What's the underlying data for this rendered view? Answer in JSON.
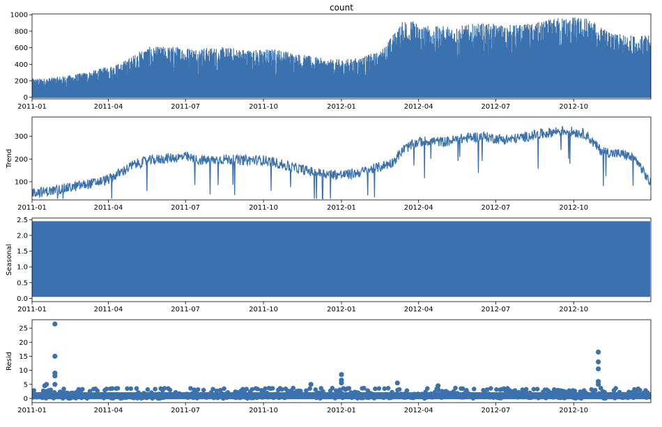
{
  "chart_data": [
    {
      "type": "area",
      "panel": "observed",
      "title": "count",
      "ylabel": "",
      "ylim": [
        -20,
        1010
      ],
      "yticks": [
        0,
        200,
        400,
        600,
        800,
        1000
      ],
      "xlim": [
        "2011-01-01",
        "2012-12-31"
      ],
      "xticks": [
        "2011-01",
        "2011-04",
        "2011-07",
        "2011-10",
        "2012-01",
        "2012-04",
        "2012-07",
        "2012-10"
      ],
      "color": "#3a72b0",
      "series": [
        {
          "values_monthly_peak": [
            {
              "x": "2011-01",
              "y": 230
            },
            {
              "x": "2011-02",
              "y": 270
            },
            {
              "x": "2011-03",
              "y": 330
            },
            {
              "x": "2011-04",
              "y": 420
            },
            {
              "x": "2011-05",
              "y": 610
            },
            {
              "x": "2011-06",
              "y": 620
            },
            {
              "x": "2011-07",
              "y": 600
            },
            {
              "x": "2011-08",
              "y": 610
            },
            {
              "x": "2011-09",
              "y": 580
            },
            {
              "x": "2011-10",
              "y": 590
            },
            {
              "x": "2011-11",
              "y": 520
            },
            {
              "x": "2011-12",
              "y": 460
            },
            {
              "x": "2012-01",
              "y": 470
            },
            {
              "x": "2012-02",
              "y": 560
            },
            {
              "x": "2012-03",
              "y": 960
            },
            {
              "x": "2012-04",
              "y": 860
            },
            {
              "x": "2012-05",
              "y": 870
            },
            {
              "x": "2012-06",
              "y": 900
            },
            {
              "x": "2012-07",
              "y": 880
            },
            {
              "x": "2012-08",
              "y": 900
            },
            {
              "x": "2012-09",
              "y": 980
            },
            {
              "x": "2012-10",
              "y": 970
            },
            {
              "x": "2012-11",
              "y": 770
            },
            {
              "x": "2012-12",
              "y": 750
            }
          ]
        }
      ]
    },
    {
      "type": "line",
      "panel": "trend",
      "title": "",
      "ylabel": "Trend",
      "ylim": [
        20,
        385
      ],
      "yticks": [
        100,
        200,
        300
      ],
      "xlim": [
        "2011-01-01",
        "2012-12-31"
      ],
      "xticks": [
        "2011-01",
        "2011-04",
        "2011-07",
        "2011-10",
        "2012-01",
        "2012-04",
        "2012-07",
        "2012-10"
      ],
      "color": "#3a72b0",
      "series": [
        {
          "values": [
            {
              "x": "2011-01-01",
              "y": 55
            },
            {
              "x": "2011-01-15",
              "y": 55
            },
            {
              "x": "2011-02-01",
              "y": 65
            },
            {
              "x": "2011-02-15",
              "y": 75
            },
            {
              "x": "2011-03-01",
              "y": 85
            },
            {
              "x": "2011-03-15",
              "y": 95
            },
            {
              "x": "2011-04-01",
              "y": 110
            },
            {
              "x": "2011-04-15",
              "y": 140
            },
            {
              "x": "2011-05-01",
              "y": 175
            },
            {
              "x": "2011-05-15",
              "y": 190
            },
            {
              "x": "2011-06-01",
              "y": 200
            },
            {
              "x": "2011-06-15",
              "y": 205
            },
            {
              "x": "2011-07-01",
              "y": 210
            },
            {
              "x": "2011-07-15",
              "y": 195
            },
            {
              "x": "2011-08-01",
              "y": 195
            },
            {
              "x": "2011-08-15",
              "y": 200
            },
            {
              "x": "2011-09-01",
              "y": 195
            },
            {
              "x": "2011-09-15",
              "y": 195
            },
            {
              "x": "2011-10-01",
              "y": 195
            },
            {
              "x": "2011-10-15",
              "y": 185
            },
            {
              "x": "2011-11-01",
              "y": 165
            },
            {
              "x": "2011-11-15",
              "y": 155
            },
            {
              "x": "2011-12-01",
              "y": 140
            },
            {
              "x": "2011-12-15",
              "y": 135
            },
            {
              "x": "2012-01-01",
              "y": 130
            },
            {
              "x": "2012-01-15",
              "y": 135
            },
            {
              "x": "2012-02-01",
              "y": 150
            },
            {
              "x": "2012-02-15",
              "y": 165
            },
            {
              "x": "2012-03-01",
              "y": 185
            },
            {
              "x": "2012-03-15",
              "y": 245
            },
            {
              "x": "2012-04-01",
              "y": 275
            },
            {
              "x": "2012-04-15",
              "y": 280
            },
            {
              "x": "2012-05-01",
              "y": 275
            },
            {
              "x": "2012-05-15",
              "y": 285
            },
            {
              "x": "2012-06-01",
              "y": 295
            },
            {
              "x": "2012-06-15",
              "y": 300
            },
            {
              "x": "2012-07-01",
              "y": 290
            },
            {
              "x": "2012-07-15",
              "y": 285
            },
            {
              "x": "2012-08-01",
              "y": 295
            },
            {
              "x": "2012-08-15",
              "y": 305
            },
            {
              "x": "2012-09-01",
              "y": 315
            },
            {
              "x": "2012-09-15",
              "y": 325
            },
            {
              "x": "2012-10-01",
              "y": 320
            },
            {
              "x": "2012-10-15",
              "y": 310
            },
            {
              "x": "2012-11-01",
              "y": 240
            },
            {
              "x": "2012-11-15",
              "y": 225
            },
            {
              "x": "2012-12-01",
              "y": 220
            },
            {
              "x": "2012-12-15",
              "y": 190
            },
            {
              "x": "2012-12-31",
              "y": 90
            }
          ]
        }
      ]
    },
    {
      "type": "area",
      "panel": "seasonal",
      "title": "",
      "ylabel": "Seasonal",
      "ylim": [
        -0.1,
        2.55
      ],
      "yticks": [
        0.0,
        0.5,
        1.0,
        1.5,
        2.0,
        2.5
      ],
      "xlim": [
        "2011-01-01",
        "2012-12-31"
      ],
      "xticks": [
        "2011-01",
        "2011-04",
        "2011-07",
        "2011-10",
        "2012-01",
        "2012-04",
        "2012-07",
        "2012-10"
      ],
      "color": "#3a72b0",
      "series": [
        {
          "values": [
            {
              "x": "2011-01-01",
              "y": 0.05
            },
            {
              "x": "2012-12-31",
              "y": 2.45
            }
          ]
        }
      ]
    },
    {
      "type": "scatter",
      "panel": "resid",
      "title": "",
      "ylabel": "Resid",
      "ylim": [
        -1.5,
        28
      ],
      "yticks": [
        0,
        5,
        10,
        15,
        20,
        25
      ],
      "xlim": [
        "2011-01-01",
        "2012-12-31"
      ],
      "xticks": [
        "2011-01",
        "2011-04",
        "2011-07",
        "2011-10",
        "2012-01",
        "2012-04",
        "2012-07",
        "2012-10"
      ],
      "color": "#3a72b0",
      "series": [
        {
          "values": [
            {
              "x": "2011-01-28",
              "y": 26.5
            },
            {
              "x": "2011-01-28",
              "y": 15
            },
            {
              "x": "2011-01-28",
              "y": 9
            },
            {
              "x": "2011-01-28",
              "y": 8
            },
            {
              "x": "2011-01-28",
              "y": 5
            },
            {
              "x": "2011-01-16",
              "y": 4.5
            },
            {
              "x": "2011-01-18",
              "y": 5
            },
            {
              "x": "2011-11-26",
              "y": 5
            },
            {
              "x": "2012-01-01",
              "y": 8.5
            },
            {
              "x": "2012-01-01",
              "y": 6.5
            },
            {
              "x": "2012-01-01",
              "y": 5.5
            },
            {
              "x": "2012-03-07",
              "y": 5.5
            },
            {
              "x": "2012-04-24",
              "y": 4.5
            },
            {
              "x": "2012-10-30",
              "y": 16.5
            },
            {
              "x": "2012-10-30",
              "y": 13
            },
            {
              "x": "2012-10-30",
              "y": 10.5
            },
            {
              "x": "2012-10-30",
              "y": 6
            },
            {
              "x": "2012-10-30",
              "y": 5
            }
          ]
        }
      ]
    }
  ]
}
